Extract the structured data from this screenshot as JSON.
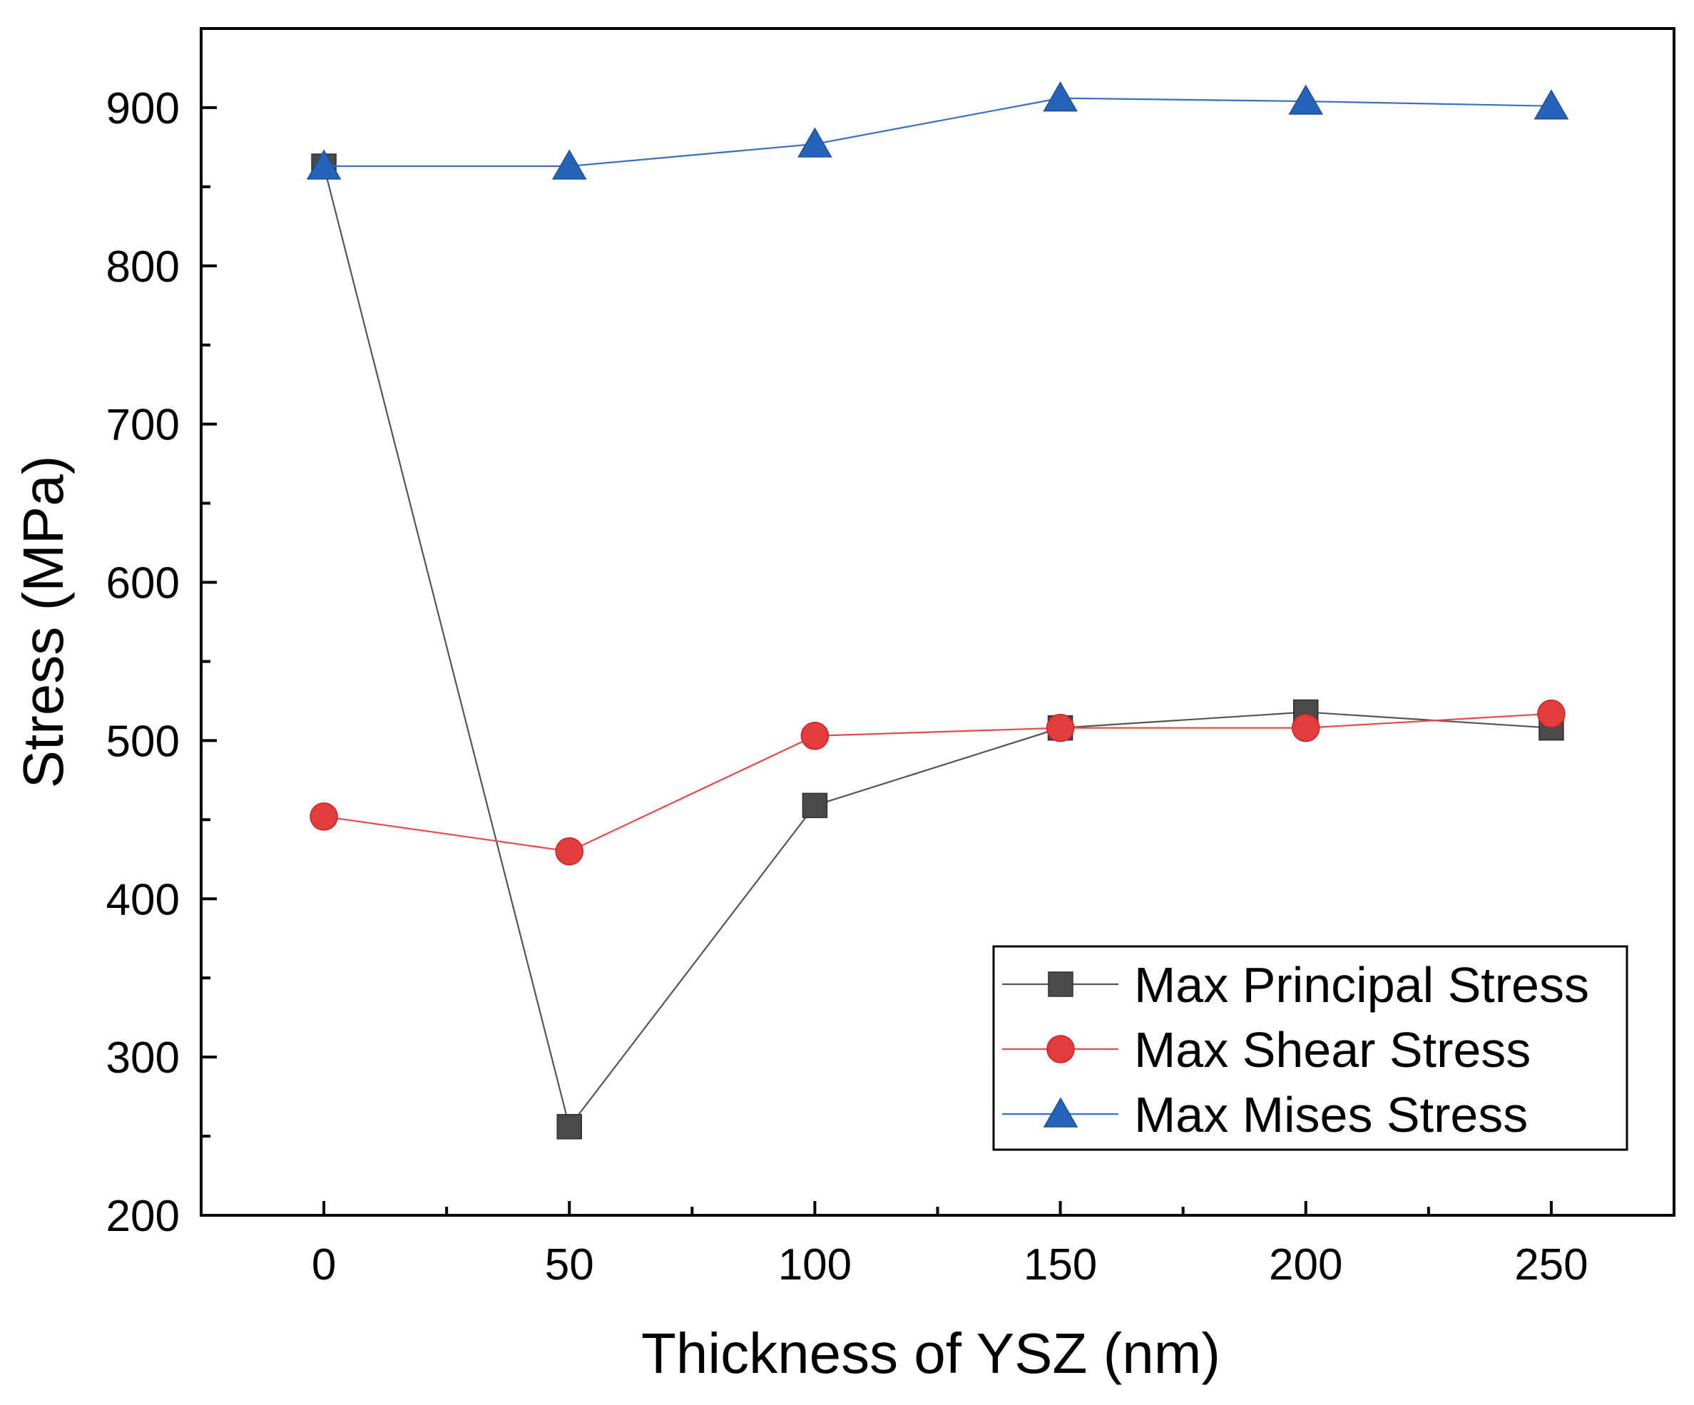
{
  "chart_data": {
    "type": "line",
    "title": "",
    "xlabel": "Thickness of YSZ (nm)",
    "ylabel": "Stress (MPa)",
    "xlim": [
      -25,
      275
    ],
    "ylim": [
      200,
      950
    ],
    "x": [
      0,
      50,
      100,
      150,
      200,
      250
    ],
    "x_ticks": [
      0,
      50,
      100,
      150,
      200,
      250
    ],
    "x_tick_labels": [
      "0",
      "50",
      "100",
      "150",
      "200",
      "250"
    ],
    "x_minor_ticks": [
      25,
      75,
      125,
      175,
      225
    ],
    "y_ticks": [
      200,
      300,
      400,
      500,
      600,
      700,
      800,
      900
    ],
    "y_tick_labels": [
      "200",
      "300",
      "400",
      "500",
      "600",
      "700",
      "800",
      "900"
    ],
    "y_minor_ticks": [
      250,
      350,
      450,
      550,
      650,
      750,
      850
    ],
    "grid": false,
    "legend_position": "bottom-right",
    "series": [
      {
        "name": "Max Principal Stress",
        "marker": "square",
        "color": "#4a4a4a",
        "line_color": "#555555",
        "values": [
          863,
          256,
          459,
          508,
          518,
          508
        ]
      },
      {
        "name": "Max Shear Stress",
        "marker": "circle",
        "color": "#e23c3c",
        "line_color": "#e84a4a",
        "values": [
          452,
          430,
          503,
          508,
          508,
          517
        ]
      },
      {
        "name": "Max Mises Stress",
        "marker": "triangle",
        "color": "#2563b8",
        "line_color": "#3a6fc4",
        "values": [
          863,
          863,
          877,
          906,
          904,
          901
        ]
      }
    ]
  }
}
